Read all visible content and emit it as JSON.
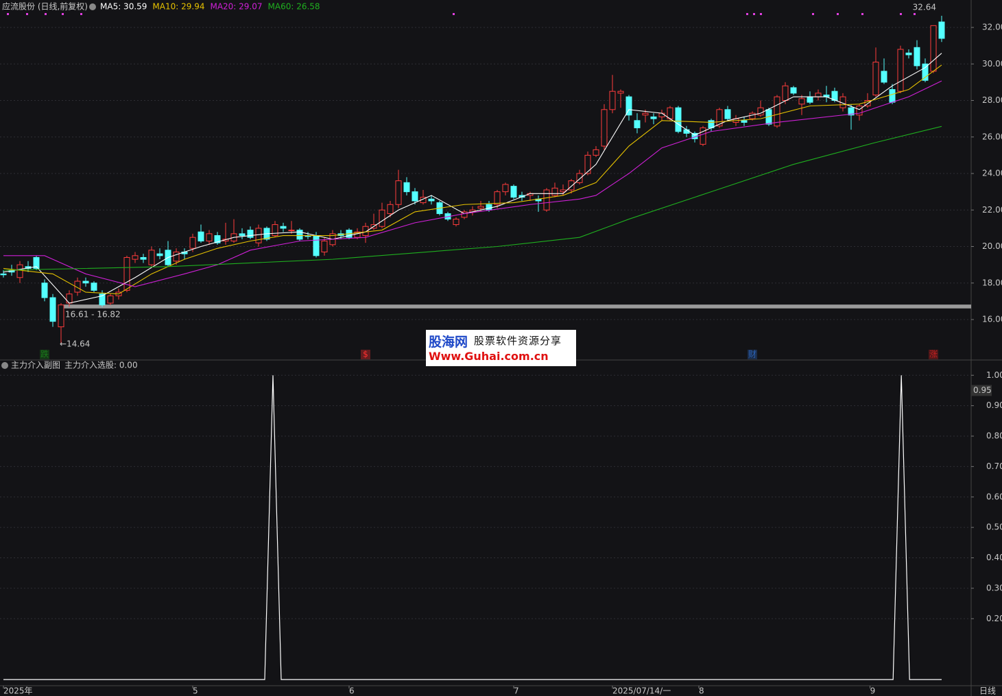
{
  "chart_data": [
    {
      "type": "candlestick",
      "title": "应流股份 (日线,前复权)",
      "ylim": [
        14,
        33.2
      ],
      "yticks": [
        {
          "value": 16,
          "label": "16.00"
        },
        {
          "value": 18,
          "label": "18.00"
        },
        {
          "value": 20,
          "label": "20.00"
        },
        {
          "value": 22,
          "label": "22.00"
        },
        {
          "value": 24,
          "label": "24.00"
        },
        {
          "value": 26,
          "label": "26.00"
        },
        {
          "value": 28,
          "label": "28.00"
        },
        {
          "value": 30,
          "label": "30.00"
        },
        {
          "value": 32,
          "label": "32.00"
        }
      ],
      "up_color": "#ff3c3c",
      "down_color": "#54ffff",
      "grid": true,
      "candles": [
        [
          18.5,
          18.7,
          18.3,
          18.45
        ],
        [
          18.7,
          19.0,
          18.4,
          18.6
        ],
        [
          18.3,
          19.2,
          18.0,
          19.0
        ],
        [
          18.9,
          19.2,
          18.6,
          18.8
        ],
        [
          19.4,
          19.5,
          18.7,
          18.8
        ],
        [
          18.0,
          18.2,
          17.0,
          17.2
        ],
        [
          17.2,
          17.4,
          15.6,
          15.9
        ],
        [
          15.6,
          16.9,
          14.64,
          16.8
        ],
        [
          16.9,
          17.6,
          16.7,
          17.4
        ],
        [
          17.5,
          18.3,
          17.3,
          18.1
        ],
        [
          18.1,
          18.3,
          17.8,
          18.0
        ],
        [
          18.0,
          18.1,
          17.5,
          17.6
        ],
        [
          17.4,
          17.6,
          16.7,
          16.8
        ],
        [
          16.9,
          17.4,
          16.8,
          17.3
        ],
        [
          17.3,
          17.7,
          17.1,
          17.5
        ],
        [
          17.6,
          19.5,
          17.5,
          19.4
        ],
        [
          19.3,
          19.7,
          19.1,
          19.5
        ],
        [
          19.4,
          19.6,
          19.1,
          19.3
        ],
        [
          19.0,
          20.0,
          18.9,
          19.8
        ],
        [
          19.6,
          19.9,
          19.3,
          19.5
        ],
        [
          19.8,
          20.3,
          18.9,
          19.0
        ],
        [
          19.2,
          19.9,
          19.0,
          19.7
        ],
        [
          19.7,
          19.9,
          19.3,
          19.6
        ],
        [
          19.9,
          20.7,
          19.7,
          20.5
        ],
        [
          20.8,
          21.2,
          20.2,
          20.3
        ],
        [
          20.3,
          20.9,
          20.1,
          20.7
        ],
        [
          20.6,
          20.8,
          20.1,
          20.2
        ],
        [
          20.3,
          21.3,
          20.1,
          20.4
        ],
        [
          20.3,
          21.5,
          20.2,
          20.7
        ],
        [
          20.7,
          21.0,
          20.4,
          20.6
        ],
        [
          20.9,
          21.1,
          20.4,
          20.5
        ],
        [
          20.2,
          21.2,
          20.0,
          21.0
        ],
        [
          21.0,
          21.1,
          20.3,
          20.4
        ],
        [
          20.6,
          21.4,
          20.5,
          21.2
        ],
        [
          21.1,
          21.3,
          20.8,
          21.0
        ],
        [
          20.9,
          21.4,
          20.7,
          20.9
        ],
        [
          20.9,
          21.0,
          20.3,
          20.4
        ],
        [
          20.6,
          20.8,
          20.4,
          20.55
        ],
        [
          20.6,
          20.8,
          19.4,
          19.5
        ],
        [
          19.7,
          20.5,
          19.5,
          20.3
        ],
        [
          20.1,
          20.9,
          20.0,
          20.7
        ],
        [
          20.7,
          20.9,
          20.4,
          20.6
        ],
        [
          20.9,
          21.0,
          20.4,
          20.5
        ],
        [
          20.5,
          21.0,
          20.4,
          20.8
        ],
        [
          20.6,
          21.3,
          20.2,
          21.1
        ],
        [
          21.0,
          21.8,
          20.9,
          21.2
        ],
        [
          21.1,
          22.4,
          21.0,
          22.0
        ],
        [
          21.8,
          22.5,
          21.6,
          22.3
        ],
        [
          22.3,
          24.2,
          22.1,
          23.6
        ],
        [
          23.5,
          23.8,
          22.8,
          23.0
        ],
        [
          23.0,
          23.2,
          22.3,
          22.5
        ],
        [
          22.4,
          23.1,
          22.3,
          22.7
        ],
        [
          22.6,
          22.8,
          22.3,
          22.5
        ],
        [
          22.4,
          22.5,
          21.7,
          21.8
        ],
        [
          21.8,
          21.9,
          21.4,
          21.5
        ],
        [
          21.2,
          21.6,
          21.1,
          21.5
        ],
        [
          21.6,
          22.0,
          21.5,
          21.9
        ],
        [
          21.9,
          22.2,
          21.7,
          22.0
        ],
        [
          22.1,
          22.5,
          21.9,
          22.2
        ],
        [
          22.3,
          22.5,
          21.9,
          22.0
        ],
        [
          22.3,
          23.1,
          22.1,
          23.0
        ],
        [
          23.0,
          23.5,
          22.8,
          23.4
        ],
        [
          23.3,
          23.4,
          22.6,
          22.7
        ],
        [
          22.8,
          23.0,
          22.5,
          22.7
        ],
        [
          22.8,
          23.0,
          22.5,
          22.9
        ],
        [
          22.6,
          22.8,
          21.9,
          22.5
        ],
        [
          22.0,
          23.2,
          21.9,
          23.1
        ],
        [
          22.8,
          23.5,
          22.7,
          23.2
        ],
        [
          23.0,
          23.4,
          22.8,
          23.1
        ],
        [
          23.1,
          23.7,
          22.9,
          23.6
        ],
        [
          23.5,
          24.2,
          23.4,
          24.0
        ],
        [
          24.0,
          25.2,
          23.9,
          25.0
        ],
        [
          25.0,
          25.5,
          24.9,
          25.3
        ],
        [
          25.5,
          27.8,
          25.3,
          27.5
        ],
        [
          27.5,
          29.4,
          27.3,
          28.5
        ],
        [
          28.4,
          28.6,
          27.6,
          28.5
        ],
        [
          28.2,
          28.3,
          26.9,
          27.2
        ],
        [
          26.9,
          27.3,
          26.2,
          26.5
        ],
        [
          27.2,
          27.5,
          26.8,
          27.3
        ],
        [
          27.1,
          27.3,
          26.7,
          27.0
        ],
        [
          27.1,
          27.5,
          26.9,
          27.3
        ],
        [
          27.0,
          27.7,
          26.9,
          27.6
        ],
        [
          27.6,
          27.7,
          26.2,
          26.3
        ],
        [
          26.4,
          26.6,
          26.0,
          26.2
        ],
        [
          26.2,
          26.3,
          25.7,
          25.9
        ],
        [
          25.6,
          26.6,
          25.5,
          26.5
        ],
        [
          26.9,
          27.0,
          26.3,
          26.5
        ],
        [
          26.6,
          27.6,
          26.5,
          27.5
        ],
        [
          27.5,
          27.7,
          26.9,
          27.0
        ],
        [
          26.8,
          27.2,
          26.6,
          27.0
        ],
        [
          26.9,
          27.1,
          26.6,
          26.8
        ],
        [
          27.0,
          27.4,
          26.9,
          27.3
        ],
        [
          27.2,
          28.0,
          27.1,
          27.6
        ],
        [
          27.5,
          27.6,
          26.6,
          26.7
        ],
        [
          26.6,
          28.3,
          26.5,
          28.2
        ],
        [
          28.0,
          29.0,
          27.8,
          28.8
        ],
        [
          28.7,
          28.8,
          28.3,
          28.4
        ],
        [
          27.8,
          28.3,
          27.2,
          28.1
        ],
        [
          28.2,
          28.5,
          27.8,
          27.9
        ],
        [
          28.2,
          28.6,
          28.0,
          28.4
        ],
        [
          28.3,
          28.8,
          27.9,
          28.2
        ],
        [
          28.5,
          28.7,
          27.9,
          28.0
        ],
        [
          27.6,
          28.4,
          27.4,
          28.2
        ],
        [
          27.6,
          27.8,
          26.4,
          27.2
        ],
        [
          27.2,
          27.8,
          26.9,
          27.7
        ],
        [
          27.7,
          28.4,
          27.6,
          28.0
        ],
        [
          28.3,
          30.9,
          28.2,
          30.1
        ],
        [
          29.6,
          30.3,
          28.9,
          29.0
        ],
        [
          28.6,
          28.9,
          27.8,
          27.9
        ],
        [
          28.5,
          31.0,
          28.4,
          30.8
        ],
        [
          30.6,
          30.8,
          30.3,
          30.5
        ],
        [
          30.9,
          31.3,
          29.7,
          29.9
        ],
        [
          30.0,
          30.3,
          29.0,
          29.1
        ],
        [
          29.6,
          32.1,
          29.5,
          32.1
        ],
        [
          32.3,
          32.64,
          31.2,
          31.4
        ]
      ],
      "series": [
        {
          "name": "MA5",
          "legend": "MA5: 30.59",
          "color": "#ffffff",
          "x": [
            0,
            4,
            8,
            12,
            16,
            20,
            24,
            28,
            32,
            36,
            40,
            44,
            48,
            52,
            56,
            60,
            64,
            68,
            72,
            76,
            80,
            84,
            88,
            92,
            96,
            100,
            104,
            108,
            112,
            114
          ],
          "values": [
            18.6,
            18.9,
            16.9,
            17.3,
            18.3,
            19.4,
            20.0,
            20.5,
            20.7,
            20.8,
            20.4,
            20.8,
            22.0,
            22.8,
            21.8,
            22.2,
            22.9,
            22.9,
            24.5,
            27.5,
            27.3,
            26.1,
            26.9,
            27.3,
            28.2,
            28.2,
            27.5,
            28.8,
            29.8,
            30.59
          ]
        },
        {
          "name": "MA10",
          "legend": "MA10: 29.94",
          "color": "#e6c200",
          "x": [
            0,
            6,
            10,
            14,
            18,
            22,
            26,
            30,
            34,
            40,
            46,
            50,
            56,
            62,
            68,
            72,
            76,
            80,
            86,
            92,
            98,
            104,
            110,
            114
          ],
          "values": [
            18.8,
            18.5,
            17.5,
            17.4,
            18.5,
            19.3,
            19.9,
            20.3,
            20.6,
            20.6,
            20.9,
            21.9,
            22.3,
            22.4,
            22.8,
            23.5,
            25.5,
            26.9,
            26.8,
            27.0,
            27.7,
            27.8,
            28.6,
            29.94
          ]
        },
        {
          "name": "MA20",
          "legend": "MA20: 29.07",
          "color": "#d020d8",
          "x": [
            0,
            5,
            10,
            16,
            22,
            26,
            30,
            36,
            44,
            50,
            56,
            64,
            70,
            72,
            76,
            80,
            86,
            94,
            104,
            110,
            114
          ],
          "values": [
            19.5,
            19.5,
            18.5,
            17.8,
            18.5,
            19.0,
            19.8,
            20.3,
            20.5,
            21.3,
            21.8,
            22.3,
            22.6,
            22.8,
            24.0,
            25.4,
            26.3,
            26.8,
            27.3,
            28.2,
            29.07
          ]
        },
        {
          "name": "MA60",
          "legend": "MA60: 26.58",
          "color": "#1fb01f",
          "x": [
            0,
            20,
            40,
            60,
            70,
            76,
            86,
            96,
            106,
            114
          ],
          "values": [
            18.7,
            18.9,
            19.3,
            20.0,
            20.5,
            21.5,
            23.0,
            24.5,
            25.7,
            26.58
          ]
        }
      ],
      "annotations": [
        {
          "label": "32.64",
          "value": 32.64,
          "x": 114
        },
        {
          "label": "←14.64",
          "value": 14.64,
          "x": 7
        }
      ],
      "band": {
        "label": "16.61 - 16.82",
        "range": [
          16.61,
          16.82
        ],
        "x": 7
      },
      "markers": [
        {
          "x": 5,
          "label": "跌",
          "color": "#1a7a1a"
        },
        {
          "x": 44,
          "label": "$",
          "color": "#ff3030"
        },
        {
          "x": 91,
          "label": "财",
          "color": "#2a5fb0"
        },
        {
          "x": 113,
          "label": "涨",
          "color": "#c02020"
        }
      ],
      "xticks": [
        {
          "value": 0,
          "label": "2025年"
        },
        {
          "value": 23,
          "label": "5"
        },
        {
          "value": 42,
          "label": "6"
        },
        {
          "value": 62,
          "label": "7"
        },
        {
          "value": 74,
          "label": "2025/07/14/一"
        },
        {
          "value": 84.5,
          "label": "8"
        },
        {
          "value": 105.3,
          "label": "9"
        }
      ],
      "period": "日线"
    },
    {
      "type": "line",
      "title": "主力介入副图",
      "legend": "主力介入选股: 0.00",
      "color": "#ffffff",
      "ylim": [
        0,
        1
      ],
      "yticks": [
        {
          "value": 0.2,
          "label": "0.20"
        },
        {
          "value": 0.3,
          "label": "0.30"
        },
        {
          "value": 0.4,
          "label": "0.40"
        },
        {
          "value": 0.5,
          "label": "0.50"
        },
        {
          "value": 0.6,
          "label": "0.60"
        },
        {
          "value": 0.7,
          "label": "0.70"
        },
        {
          "value": 0.8,
          "label": "0.80"
        },
        {
          "value": 0.9,
          "label": "0.90"
        },
        {
          "value": 1,
          "label": "1.00"
        }
      ],
      "cursor": {
        "value": 0.95,
        "label": "0.95"
      },
      "x": [
        0,
        31.75,
        32.75,
        33.75,
        108.1,
        109.1,
        110.1,
        114
      ],
      "values": [
        0,
        0,
        1,
        0,
        0,
        1,
        0,
        0
      ]
    }
  ],
  "watermark": {
    "brand": "股海网",
    "slogan": "股票软件资源分享",
    "url": "Www.Guhai.com.cn"
  }
}
